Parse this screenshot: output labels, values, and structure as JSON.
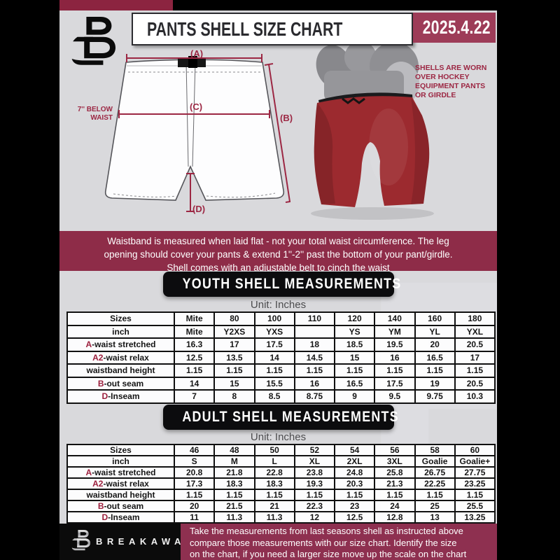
{
  "header": {
    "title": "PANTS SHELL SIZE CHART",
    "date": "2025.4.22"
  },
  "diagram": {
    "label_a": "(A)",
    "label_b": "(B)",
    "label_c": "(C)",
    "label_d": "(D)",
    "side_note_line1": "7'' BELOW",
    "side_note_line2": "WAIST",
    "photo_note_line1": "SHELLS ARE WORN",
    "photo_note_line2": "OVER HOCKEY",
    "photo_note_line3": "EQUIPMENT PANTS",
    "photo_note_line4": "OR GIRDLE"
  },
  "info_banner": {
    "lines": [
      "Waistband is measured when laid flat - not your total waist circumference. The leg",
      "opening should cover your pants & extend 1''-2'' past the bottom of your pant/girdle.",
      "Shell comes with an adjustable belt to cinch the waist"
    ]
  },
  "youth": {
    "title": "YOUTH SHELL MEASUREMENTS",
    "unit": "Unit: Inches",
    "rows": [
      {
        "prefix": "",
        "label": "Sizes",
        "values": [
          "Mite",
          "80",
          "100",
          "110",
          "120",
          "140",
          "160",
          "180"
        ]
      },
      {
        "prefix": "",
        "label": "inch",
        "values": [
          "Mite",
          "Y2XS",
          "YXS",
          "",
          "YS",
          "YM",
          "YL",
          "YXL"
        ]
      },
      {
        "prefix": "A",
        "label": "-waist stretched",
        "values": [
          "16.3",
          "17",
          "17.5",
          "18",
          "18.5",
          "19.5",
          "20",
          "20.5"
        ]
      },
      {
        "prefix": "A2",
        "label": "-waist relax",
        "values": [
          "12.5",
          "13.5",
          "14",
          "14.5",
          "15",
          "16",
          "16.5",
          "17"
        ]
      },
      {
        "prefix": "",
        "label": "waistband height",
        "values": [
          "1.15",
          "1.15",
          "1.15",
          "1.15",
          "1.15",
          "1.15",
          "1.15",
          "1.15"
        ]
      },
      {
        "prefix": "B",
        "label": "-out seam",
        "values": [
          "14",
          "15",
          "15.5",
          "16",
          "16.5",
          "17.5",
          "19",
          "20.5"
        ]
      },
      {
        "prefix": "D",
        "label": "-Inseam",
        "values": [
          "7",
          "8",
          "8.5",
          "8.75",
          "9",
          "9.5",
          "9.75",
          "10.3"
        ]
      }
    ]
  },
  "adult": {
    "title": "ADULT SHELL MEASUREMENTS",
    "unit": "Unit: Inches",
    "rows": [
      {
        "prefix": "",
        "label": "Sizes",
        "values": [
          "46",
          "48",
          "50",
          "52",
          "54",
          "56",
          "58",
          "60"
        ]
      },
      {
        "prefix": "",
        "label": "inch",
        "values": [
          "S",
          "M",
          "L",
          "XL",
          "2XL",
          "3XL",
          "Goalie",
          "Goalie+"
        ]
      },
      {
        "prefix": "A",
        "label": "-waist stretched",
        "values": [
          "20.8",
          "21.8",
          "22.8",
          "23.8",
          "24.8",
          "25.8",
          "26.75",
          "27.75"
        ]
      },
      {
        "prefix": "A2",
        "label": "-waist relax",
        "values": [
          "17.3",
          "18.3",
          "18.3",
          "19.3",
          "20.3",
          "21.3",
          "22.25",
          "23.25"
        ]
      },
      {
        "prefix": "",
        "label": "waistband height",
        "values": [
          "1.15",
          "1.15",
          "1.15",
          "1.15",
          "1.15",
          "1.15",
          "1.15",
          "1.15"
        ]
      },
      {
        "prefix": "B",
        "label": "-out seam",
        "values": [
          "20",
          "21.5",
          "21",
          "22.3",
          "23",
          "24",
          "25",
          "25.5"
        ]
      },
      {
        "prefix": "D",
        "label": "-Inseam",
        "values": [
          "11",
          "11.3",
          "11.3",
          "12",
          "12.5",
          "12.8",
          "13",
          "13.25"
        ]
      }
    ]
  },
  "footer": {
    "brand": "BREAKAWAY",
    "lines": [
      "Take the measurements from last seasons shell as instructed above",
      "compare those measurements  with our size chart. Identify the size",
      "on the chart, if you need a larger size move up the scale on the chart"
    ]
  },
  "watermark_letter": "B",
  "colors": {
    "maroon_banner": "#8e2c48",
    "maroon_date_box": "#9d3c58",
    "maroon_top_strip": "#8c2440",
    "maroon_footer": "#8e3050",
    "accent_red": "#9c2743",
    "page_background": "#d9d9dc",
    "shell_red": "#9c2a2f",
    "banner_black": "#0c0c0e"
  }
}
